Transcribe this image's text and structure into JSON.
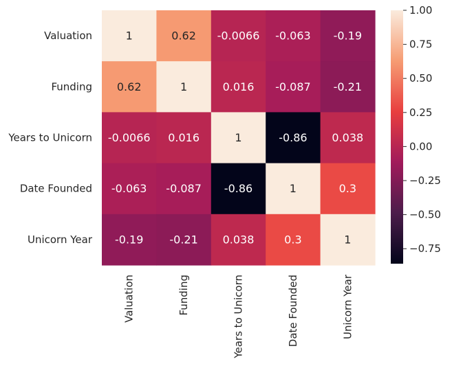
{
  "chart_data": {
    "type": "heatmap",
    "title": "",
    "xlabel": "",
    "ylabel": "",
    "x_categories": [
      "Valuation",
      "Funding",
      "Years to Unicorn",
      "Date Founded",
      "Unicorn Year"
    ],
    "y_categories": [
      "Valuation",
      "Funding",
      "Years to Unicorn",
      "Date Founded",
      "Unicorn Year"
    ],
    "values": [
      [
        1,
        0.62,
        -0.0066,
        -0.063,
        -0.19
      ],
      [
        0.62,
        1,
        0.016,
        -0.087,
        -0.21
      ],
      [
        -0.0066,
        0.016,
        1,
        -0.86,
        0.038
      ],
      [
        -0.063,
        -0.087,
        -0.86,
        1,
        0.3
      ],
      [
        -0.19,
        -0.21,
        0.038,
        0.3,
        1
      ]
    ],
    "value_labels": [
      [
        "1",
        "0.62",
        "-0.0066",
        "-0.063",
        "-0.19"
      ],
      [
        "0.62",
        "1",
        "0.016",
        "-0.087",
        "-0.21"
      ],
      [
        "-0.0066",
        "0.016",
        "1",
        "-0.86",
        "0.038"
      ],
      [
        "-0.063",
        "-0.087",
        "-0.86",
        "1",
        "0.3"
      ],
      [
        "-0.19",
        "-0.21",
        "0.038",
        "0.3",
        "1"
      ]
    ],
    "colormap": "rocket",
    "vmin": -0.86,
    "vmax": 1,
    "colorbar": {
      "position": "right",
      "ticks": [
        1.0,
        0.75,
        0.5,
        0.25,
        0.0,
        -0.25,
        -0.5,
        -0.75
      ],
      "tick_labels": [
        "1.00",
        "0.75",
        "0.50",
        "0.25",
        "0.00",
        "−0.25",
        "−0.50",
        "−0.75"
      ]
    },
    "annotations_shown": true,
    "grid": false
  }
}
